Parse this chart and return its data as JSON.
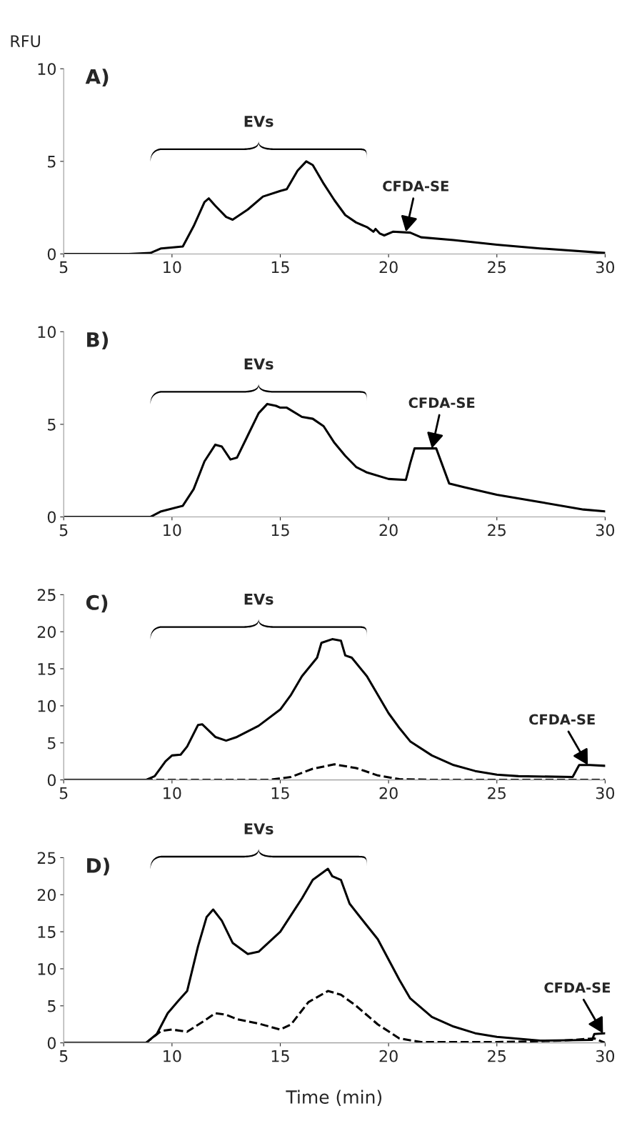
{
  "chart_data": [
    {
      "type": "line",
      "title": "A)",
      "ylabel": "RFU",
      "xlim": [
        5,
        30
      ],
      "xticks": [
        5,
        10,
        15,
        20,
        25,
        30
      ],
      "ylim": [
        0,
        10
      ],
      "yticks": [
        0,
        5,
        10
      ],
      "grid": false,
      "marker": "none",
      "annotations": [
        "EVs",
        {
          "text": "CFDA-SE",
          "x": 20.8,
          "y": 1.2
        }
      ],
      "series": [
        {
          "color": "#000000",
          "line_style": "solid",
          "x": [
            5,
            8,
            9,
            9.5,
            10.5,
            11,
            11.5,
            11.7,
            12,
            12.5,
            12.8,
            13.5,
            14.2,
            15,
            15.3,
            15.8,
            16.2,
            16.5,
            17,
            17.5,
            18,
            18.5,
            19,
            19.3,
            19.4,
            19.6,
            19.8,
            20.2,
            21,
            21.5,
            23,
            25,
            27,
            30
          ],
          "values": [
            0,
            0,
            0.05,
            0.3,
            0.4,
            1.5,
            2.8,
            3.0,
            2.6,
            2.0,
            1.85,
            2.4,
            3.1,
            3.4,
            3.5,
            4.5,
            5.0,
            4.8,
            3.8,
            2.9,
            2.1,
            1.7,
            1.45,
            1.2,
            1.35,
            1.1,
            1.0,
            1.2,
            1.15,
            0.9,
            0.75,
            0.5,
            0.3,
            0.05
          ]
        }
      ]
    },
    {
      "type": "line",
      "title": "B)",
      "xlim": [
        5,
        30
      ],
      "xticks": [
        5,
        10,
        15,
        20,
        25,
        30
      ],
      "ylim": [
        0,
        10
      ],
      "yticks": [
        0,
        5,
        10
      ],
      "grid": false,
      "marker": "none",
      "annotations": [
        "EVs",
        {
          "text": "CFDA-SE",
          "x": 22,
          "y": 3.7
        }
      ],
      "series": [
        {
          "color": "#000000",
          "line_style": "solid",
          "x": [
            5,
            9,
            9.5,
            10.5,
            11,
            11.5,
            12,
            12.3,
            12.7,
            13,
            13.5,
            14,
            14.4,
            14.8,
            15,
            15.3,
            16,
            16.5,
            17,
            17.5,
            18,
            18.5,
            19,
            20,
            20.8,
            21,
            21.2,
            21.5,
            22.2,
            22.8,
            23.5,
            25,
            27,
            29,
            30
          ],
          "values": [
            0,
            0,
            0.3,
            0.6,
            1.5,
            3.0,
            3.9,
            3.8,
            3.1,
            3.2,
            4.4,
            5.6,
            6.1,
            6.0,
            5.9,
            5.9,
            5.4,
            5.3,
            4.9,
            4.0,
            3.3,
            2.7,
            2.4,
            2.05,
            2.0,
            2.9,
            3.7,
            3.7,
            3.7,
            1.8,
            1.6,
            1.2,
            0.8,
            0.4,
            0.3
          ]
        }
      ]
    },
    {
      "type": "line",
      "title": "C)",
      "xlim": [
        5,
        30
      ],
      "xticks": [
        5,
        10,
        15,
        20,
        25,
        30
      ],
      "ylim": [
        0,
        25
      ],
      "yticks": [
        0,
        5,
        10,
        15,
        20,
        25
      ],
      "grid": false,
      "marker": "none",
      "annotations": [
        "EVs",
        {
          "text": "CFDA-SE",
          "x": 29.2,
          "y": 2.0
        }
      ],
      "series": [
        {
          "color": "#000000",
          "line_style": "solid",
          "x": [
            5,
            8.8,
            9.2,
            9.7,
            10,
            10.4,
            10.7,
            11.2,
            11.4,
            12,
            12.5,
            13,
            14,
            15,
            15.5,
            16,
            16.7,
            16.9,
            17.4,
            17.8,
            18,
            18.3,
            19,
            20,
            20.5,
            21,
            22,
            23,
            24,
            25,
            26,
            28.5,
            28.8,
            29.3,
            30
          ],
          "values": [
            0,
            0,
            0.5,
            2.5,
            3.3,
            3.4,
            4.5,
            7.4,
            7.5,
            5.8,
            5.3,
            5.8,
            7.3,
            9.5,
            11.5,
            14,
            16.5,
            18.5,
            19.0,
            18.8,
            16.8,
            16.5,
            14,
            9,
            7,
            5.2,
            3.3,
            2,
            1.2,
            0.7,
            0.5,
            0.4,
            2.0,
            2.0,
            1.9
          ]
        },
        {
          "color": "#000000",
          "line_style": "dashed",
          "x": [
            5,
            14.5,
            15.5,
            16.5,
            17.5,
            18.5,
            19.5,
            20.5,
            22,
            30
          ],
          "values": [
            0,
            0,
            0.4,
            1.5,
            2.1,
            1.6,
            0.6,
            0.1,
            0,
            0
          ]
        }
      ]
    },
    {
      "type": "line",
      "title": "D)",
      "xlabel": "Time (min)",
      "xlim": [
        5,
        30
      ],
      "xticks": [
        5,
        10,
        15,
        20,
        25,
        30
      ],
      "ylim": [
        0,
        25
      ],
      "yticks": [
        0,
        5,
        10,
        15,
        20,
        25
      ],
      "grid": false,
      "marker": "none",
      "annotations": [
        "EVs",
        {
          "text": "CFDA-SE",
          "x": 29.9,
          "y": 1.3
        }
      ],
      "series": [
        {
          "color": "#000000",
          "line_style": "solid",
          "x": [
            5,
            8.8,
            9.3,
            9.8,
            10.3,
            10.7,
            11.2,
            11.6,
            11.9,
            12.3,
            12.8,
            13.5,
            14,
            15,
            16,
            16.5,
            17.2,
            17.4,
            17.8,
            18.2,
            18.6,
            19.5,
            20.5,
            21,
            22,
            23,
            24,
            25,
            27,
            29.4,
            29.5,
            30
          ],
          "values": [
            0,
            0,
            1.2,
            4,
            5.7,
            7,
            13,
            17,
            18,
            16.5,
            13.5,
            12,
            12.3,
            15,
            19.5,
            22,
            23.5,
            22.5,
            22,
            18.8,
            17.3,
            14,
            8.5,
            6,
            3.5,
            2.2,
            1.3,
            0.8,
            0.3,
            0.4,
            1.2,
            1.3
          ]
        },
        {
          "color": "#000000",
          "line_style": "dashed",
          "x": [
            5,
            8.8,
            9.5,
            10,
            10.7,
            11.5,
            12,
            12.5,
            13,
            14,
            15,
            15.5,
            16.3,
            17.2,
            17.8,
            18.5,
            19.5,
            20.5,
            21.5,
            25,
            28,
            29.5,
            30
          ],
          "values": [
            0,
            0,
            1.6,
            1.8,
            1.5,
            3,
            4.0,
            3.8,
            3.2,
            2.6,
            1.8,
            2.5,
            5.5,
            7.0,
            6.5,
            5,
            2.5,
            0.6,
            0.1,
            0.1,
            0.3,
            0.6,
            0
          ]
        }
      ]
    }
  ]
}
